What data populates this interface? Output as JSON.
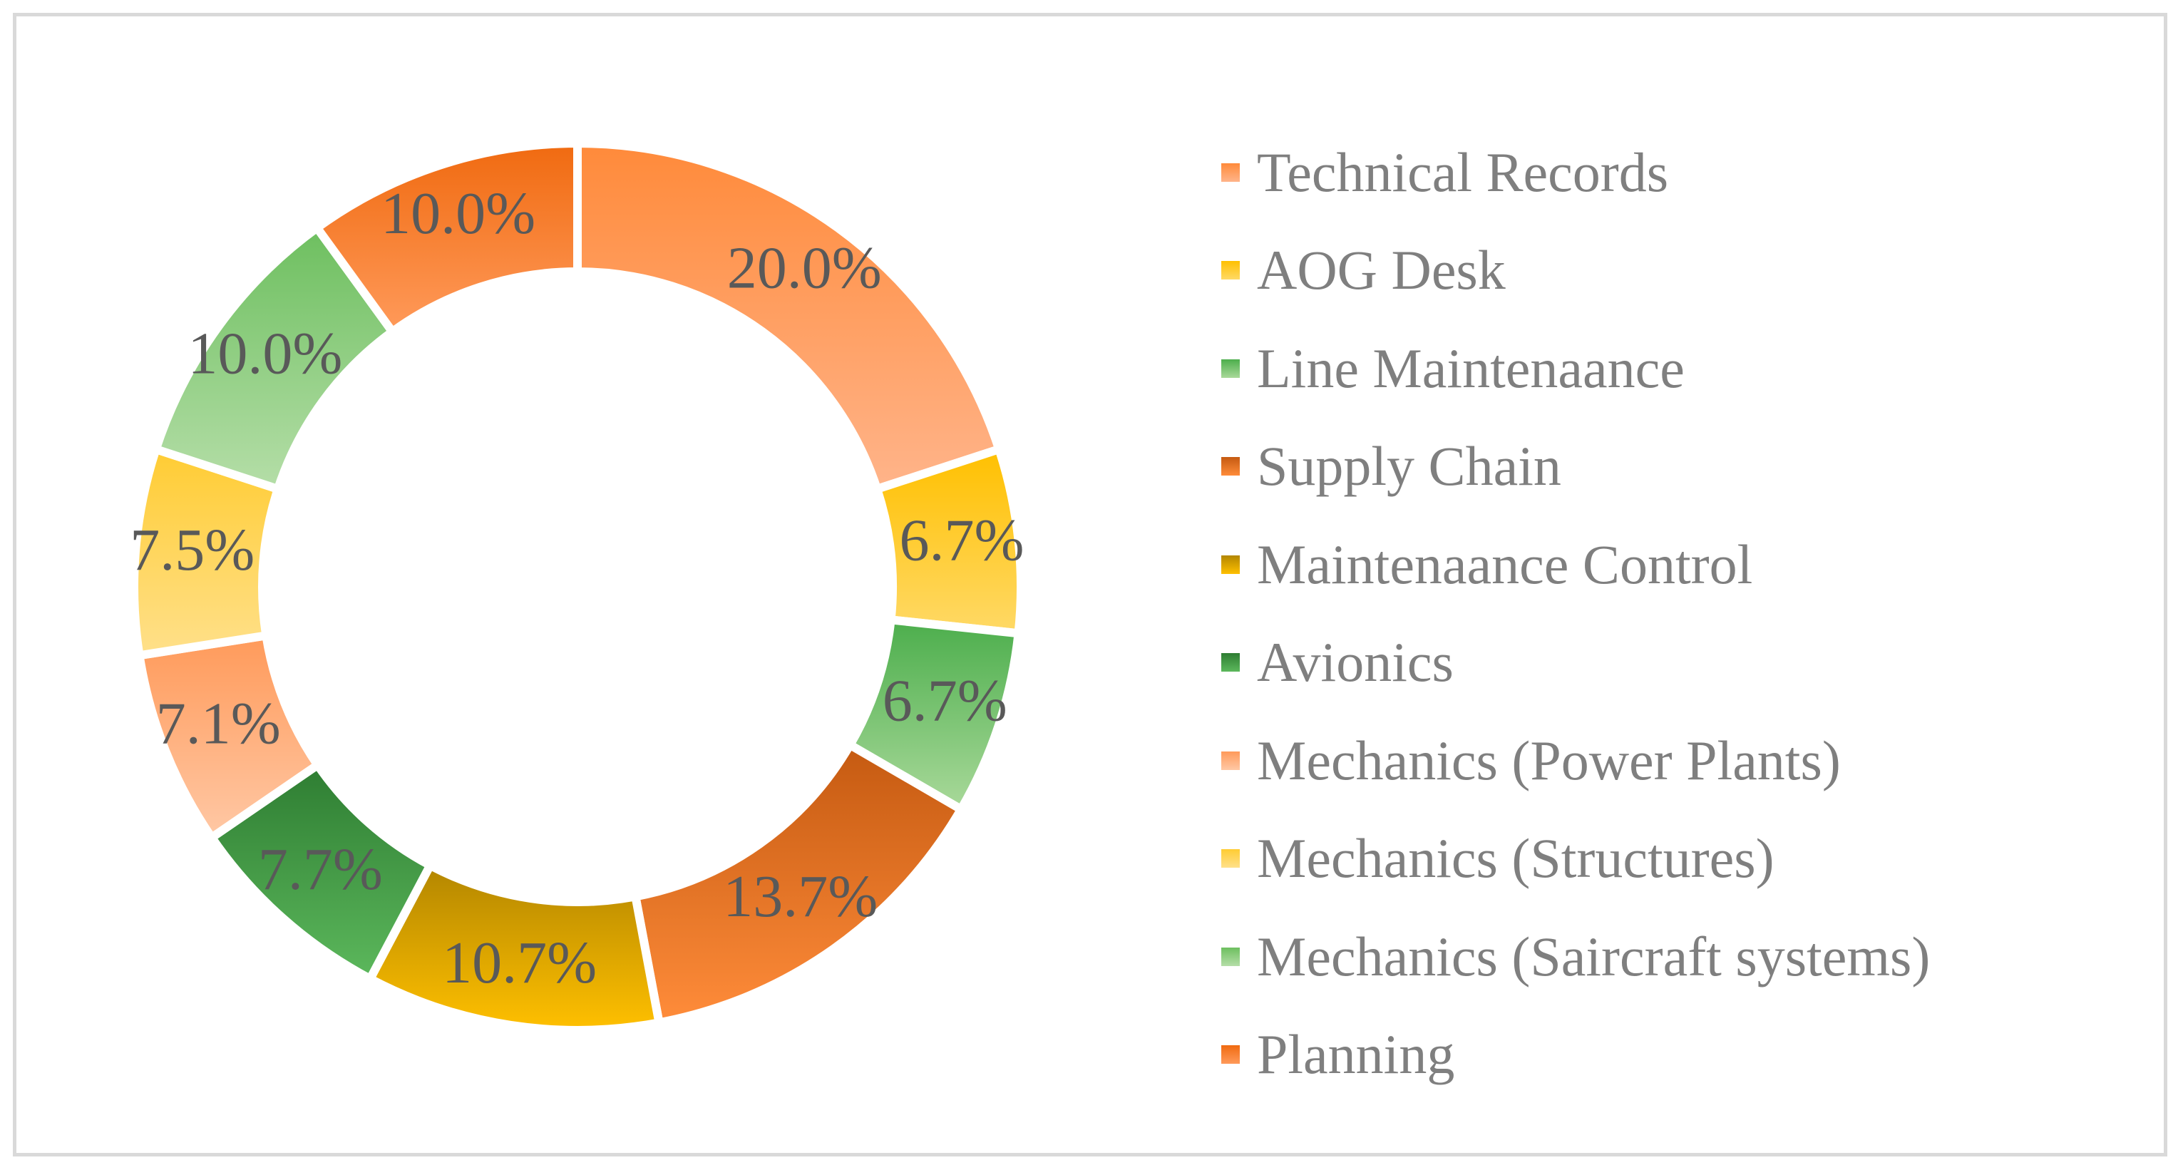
{
  "chart_data": {
    "type": "pie",
    "variant": "donut",
    "title": "",
    "legend_position": "right",
    "slices": [
      {
        "name": "Technical Records",
        "value": 20.0,
        "label": "20.0%",
        "color": "#ff8a3a",
        "color_light": "#ffb48a"
      },
      {
        "name": "AOG Desk",
        "value": 6.7,
        "label": "6.7%",
        "color": "#ffc000",
        "color_light": "#ffd966"
      },
      {
        "name": "Line Maintenaance",
        "value": 6.7,
        "label": "6.7%",
        "color": "#4cae4c",
        "color_light": "#a9d99a"
      },
      {
        "name": "Supply Chain",
        "value": 13.7,
        "label": "13.7%",
        "color": "#c55a11",
        "color_light": "#ff8c3a"
      },
      {
        "name": "Maintenaance Control",
        "value": 10.7,
        "label": "10.7%",
        "color": "#b38600",
        "color_light": "#ffc000"
      },
      {
        "name": "Avionics",
        "value": 7.7,
        "label": "7.7%",
        "color": "#2e7d32",
        "color_light": "#5cb85c"
      },
      {
        "name": "Mechanics (Power Plants)",
        "value": 7.1,
        "label": "7.1%",
        "color": "#ff9a5a",
        "color_light": "#ffc8a5"
      },
      {
        "name": "Mechanics (Structures)",
        "value": 7.5,
        "label": "7.5%",
        "color": "#ffcc33",
        "color_light": "#ffe08a"
      },
      {
        "name": "Mechanics (Saircraft systems)",
        "value": 10.0,
        "label": "10.0%",
        "color": "#6dbf5f",
        "color_light": "#b5dea8"
      },
      {
        "name": "Planning",
        "value": 10.0,
        "label": "10.0%",
        "color": "#f06a10",
        "color_light": "#ff9a5a"
      }
    ]
  }
}
